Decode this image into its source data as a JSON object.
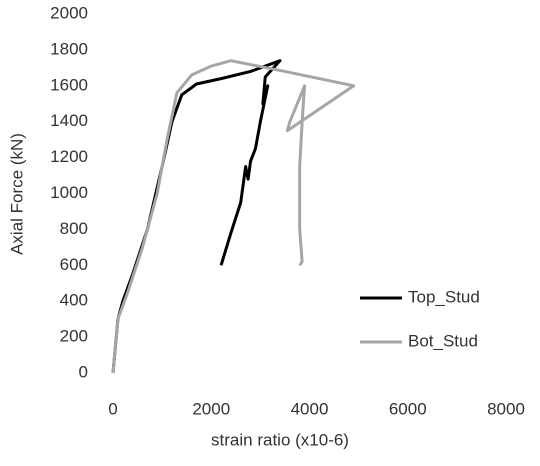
{
  "chart_data": {
    "type": "line",
    "x_label": "strain ratio (x10-6)",
    "y_label": "Axial Force (kN)",
    "xlim": [
      0,
      8000
    ],
    "xticks": [
      0,
      2000,
      4000,
      6000,
      8000
    ],
    "ylim": [
      0,
      2000
    ],
    "yticks": [
      0,
      200,
      400,
      600,
      800,
      1000,
      1200,
      1400,
      1600,
      1800,
      2000
    ],
    "series": [
      {
        "name": "Top_Stud",
        "color": "#000000",
        "x": [
          0,
          100,
          200,
          400,
          700,
          1000,
          1200,
          1400,
          1700,
          2200,
          2800,
          3200,
          3400,
          3100,
          3050,
          3150,
          3000,
          2900,
          2800,
          2750,
          2700,
          2600,
          2400,
          2200
        ],
        "values": [
          0,
          300,
          400,
          550,
          800,
          1150,
          1400,
          1550,
          1610,
          1640,
          1680,
          1720,
          1740,
          1650,
          1500,
          1600,
          1400,
          1250,
          1180,
          1080,
          1150,
          950,
          780,
          600
        ]
      },
      {
        "name": "Bot_Stud",
        "color": "#a6a6a6",
        "x": [
          0,
          100,
          300,
          600,
          900,
          1100,
          1300,
          1600,
          2000,
          2400,
          3500,
          4900,
          3550,
          3600,
          3900,
          3850,
          3800,
          3800,
          3850,
          3800
        ],
        "values": [
          0,
          300,
          450,
          700,
          1000,
          1300,
          1560,
          1660,
          1710,
          1740,
          1680,
          1600,
          1350,
          1400,
          1600,
          1400,
          1150,
          800,
          620,
          600
        ]
      }
    ],
    "legend": "right"
  }
}
